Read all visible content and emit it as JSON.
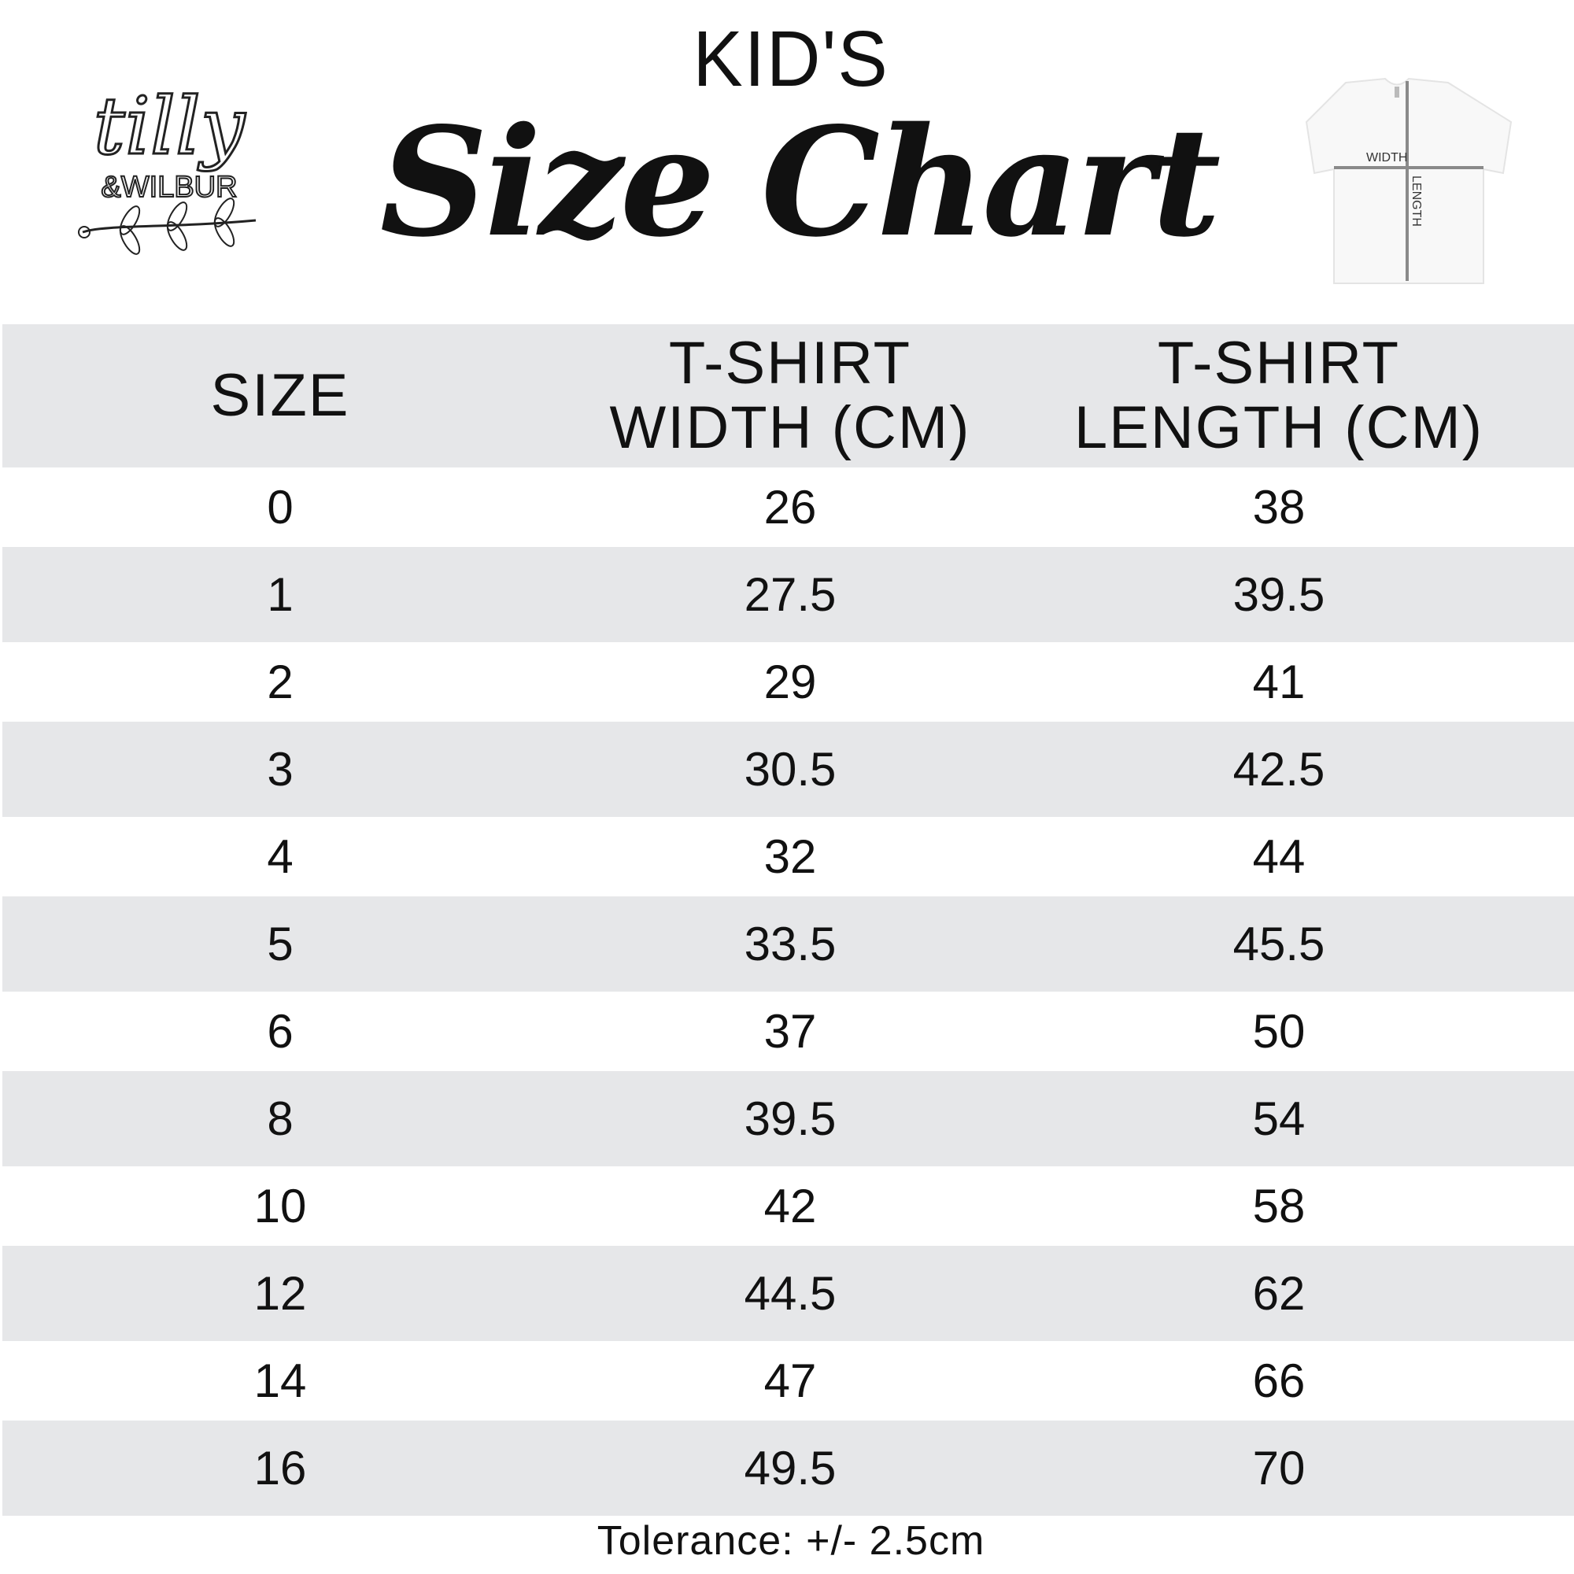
{
  "header": {
    "kicker": "KID'S",
    "title": "Size Chart",
    "logo_text": "tilly & WILBUR",
    "diagram": {
      "width_label": "WIDTH",
      "length_label": "LENGTH"
    }
  },
  "table": {
    "columns": [
      [
        "SIZE"
      ],
      [
        "T-SHIRT",
        "WIDTH (CM)"
      ],
      [
        "T-SHIRT",
        "LENGTH (CM)"
      ]
    ],
    "rows": [
      [
        "0",
        "26",
        "38"
      ],
      [
        "1",
        "27.5",
        "39.5"
      ],
      [
        "2",
        "29",
        "41"
      ],
      [
        "3",
        "30.5",
        "42.5"
      ],
      [
        "4",
        "32",
        "44"
      ],
      [
        "5",
        "33.5",
        "45.5"
      ],
      [
        "6",
        "37",
        "50"
      ],
      [
        "8",
        "39.5",
        "54"
      ],
      [
        "10",
        "42",
        "58"
      ],
      [
        "12",
        "44.5",
        "62"
      ],
      [
        "14",
        "47",
        "66"
      ],
      [
        "16",
        "49.5",
        "70"
      ]
    ]
  },
  "footer": {
    "tolerance": "Tolerance: +/- 2.5cm"
  },
  "colors": {
    "band": "#e6e7e9",
    "text": "#111111",
    "measure_line": "#8a8a8a"
  }
}
